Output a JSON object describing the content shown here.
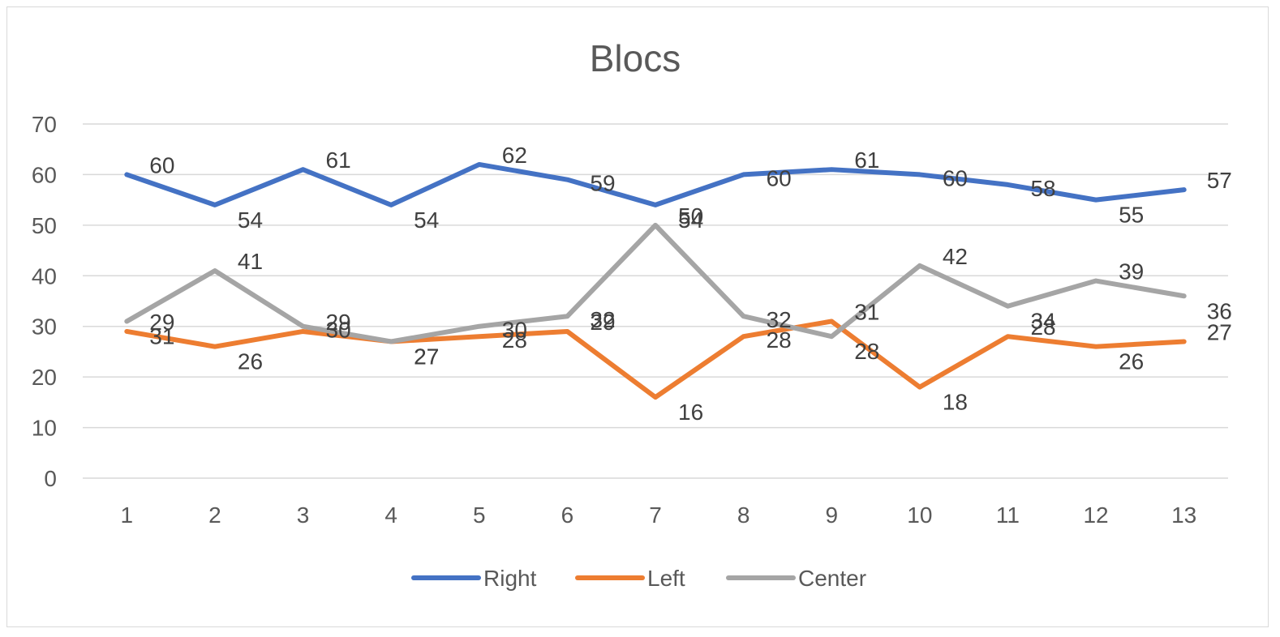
{
  "chart_data": {
    "type": "line",
    "title": "Blocs",
    "xlabel": "",
    "ylabel": "",
    "categories": [
      "1",
      "2",
      "3",
      "4",
      "5",
      "6",
      "7",
      "8",
      "9",
      "10",
      "11",
      "12",
      "13"
    ],
    "ylim": [
      0,
      70
    ],
    "yticks": [
      0,
      10,
      20,
      30,
      40,
      50,
      60,
      70
    ],
    "grid": true,
    "legend_position": "bottom",
    "series": [
      {
        "name": "Right",
        "color": "#4472C4",
        "values": [
          60,
          54,
          61,
          54,
          62,
          59,
          54,
          60,
          61,
          60,
          58,
          55,
          57
        ]
      },
      {
        "name": "Left",
        "color": "#ED7D31",
        "values": [
          29,
          26,
          29,
          27,
          28,
          29,
          16,
          28,
          31,
          18,
          28,
          26,
          27
        ]
      },
      {
        "name": "Center",
        "color": "#A5A5A5",
        "values": [
          31,
          41,
          30,
          27,
          30,
          32,
          50,
          32,
          28,
          42,
          34,
          39,
          36
        ]
      }
    ]
  }
}
